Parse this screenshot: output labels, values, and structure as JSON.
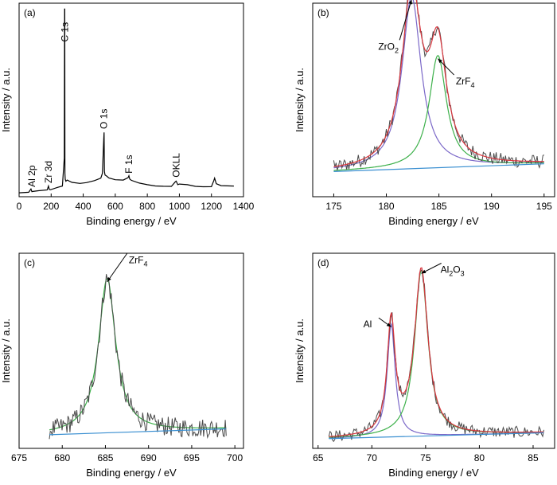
{
  "chart_data": [
    {
      "id": "a",
      "type": "line",
      "panel_label": "(a)",
      "xlabel": "Binding energy / eV",
      "ylabel": "Intensity / a.u.",
      "xlim": [
        0,
        1400
      ],
      "xticks": [
        0,
        200,
        400,
        600,
        800,
        1000,
        1200,
        1400
      ],
      "ylim": [
        0,
        100
      ],
      "series": [
        {
          "x": [
            0,
            60,
            74,
            80,
            86,
            120,
            175,
            183,
            188,
            195,
            240,
            270,
            282,
            284,
            285,
            286,
            288,
            292,
            300,
            330,
            380,
            420,
            470,
            510,
            520,
            528,
            530,
            532,
            536,
            545,
            560,
            600,
            650,
            680,
            685,
            690,
            700,
            750,
            800,
            850,
            900,
            950,
            975,
            980,
            990,
            1000,
            1050,
            1100,
            1150,
            1200,
            1215,
            1220,
            1230,
            1260,
            1300,
            1340
          ],
          "y": [
            2,
            2.3,
            4,
            2.6,
            2.7,
            3.1,
            3.5,
            5.5,
            3.8,
            3.6,
            4.8,
            5.5,
            20,
            97,
            97,
            12,
            9,
            8,
            8.6,
            7.3,
            7,
            7.2,
            8,
            9.5,
            12,
            30,
            33,
            13,
            11,
            10.6,
            9.8,
            8.6,
            8.8,
            9.8,
            11,
            9.3,
            8.3,
            6.8,
            6,
            5.8,
            5.4,
            5.2,
            7.8,
            8.2,
            6.3,
            6.3,
            6,
            5.4,
            5.2,
            5,
            8.5,
            9.8,
            6.8,
            5.8,
            5.6,
            5.5
          ]
        }
      ],
      "annotations": [
        {
          "text": "Al 2p",
          "x": 80,
          "y": 5
        },
        {
          "text": "Zr 3d",
          "x": 183,
          "y": 7
        },
        {
          "text": "C 1s",
          "x": 285,
          "y": 80
        },
        {
          "text": "O 1s",
          "x": 530,
          "y": 35
        },
        {
          "text": "F 1s",
          "x": 686,
          "y": 12
        },
        {
          "text": "OKLL",
          "x": 980,
          "y": 10
        }
      ]
    },
    {
      "id": "b",
      "type": "line",
      "panel_label": "(b)",
      "xlabel": "Binding energy / eV",
      "ylabel": "Intensity / a.u.",
      "xlim": [
        173,
        196
      ],
      "xticks": [
        175,
        180,
        185,
        190,
        195
      ],
      "ylim": [
        0,
        100
      ],
      "baseline": {
        "start": [
          175,
          13
        ],
        "end": [
          195,
          17
        ]
      },
      "peaks": [
        {
          "label": "ZrO2",
          "center": 182.4,
          "height": 89,
          "width": 1.1
        },
        {
          "label": "ZrF4",
          "center": 184.9,
          "height": 58,
          "width": 1.0
        }
      ],
      "noise": 3.5,
      "annotations": [
        {
          "text": "ZrO",
          "sub": "2",
          "x": 180.2,
          "y": 76
        },
        {
          "text": "ZrF",
          "sub": "4",
          "x": 187.5,
          "y": 58
        }
      ]
    },
    {
      "id": "c",
      "type": "line",
      "panel_label": "(c)",
      "xlabel": "Binding energy / eV",
      "ylabel": "Intensity / a.u.",
      "xlim": [
        675,
        701
      ],
      "xticks": [
        675,
        680,
        685,
        690,
        695,
        700
      ],
      "ylim": [
        0,
        100
      ],
      "baseline": {
        "start": [
          678.5,
          7
        ],
        "end": [
          699,
          10
        ]
      },
      "peaks": [
        {
          "label": "ZrF4",
          "center": 685.2,
          "height": 79,
          "width": 1.2
        }
      ],
      "noise": 5,
      "annotations": [
        {
          "text": "ZrF",
          "sub": "4",
          "x": 688.8,
          "y": 95
        }
      ]
    },
    {
      "id": "d",
      "type": "line",
      "panel_label": "(d)",
      "xlabel": "Binding energy / eV",
      "ylabel": "Intensity / a.u.",
      "xlim": [
        64.5,
        87
      ],
      "xticks": [
        65,
        70,
        75,
        80,
        85
      ],
      "ylim": [
        0,
        100
      ],
      "baseline": {
        "start": [
          66,
          5
        ],
        "end": [
          86,
          8
        ]
      },
      "peaks": [
        {
          "label": "Al",
          "center": 71.8,
          "height": 58,
          "width": 0.45
        },
        {
          "label": "Al2O3",
          "center": 74.6,
          "height": 85,
          "width": 0.75
        }
      ],
      "noise": 3,
      "annotations": [
        {
          "text": "Al",
          "sub": "",
          "x": 69.6,
          "y": 62
        },
        {
          "text": "Al",
          "sub": "2",
          "sub2": "O",
          "sub3": "3",
          "x": 77.5,
          "y": 90
        }
      ]
    }
  ],
  "colors": {
    "raw": "#4a4a4a",
    "envelope": "#d9363e",
    "component_1": "#7b68c8",
    "component_2": "#3cb04a",
    "baseline": "#3a8fd1"
  }
}
